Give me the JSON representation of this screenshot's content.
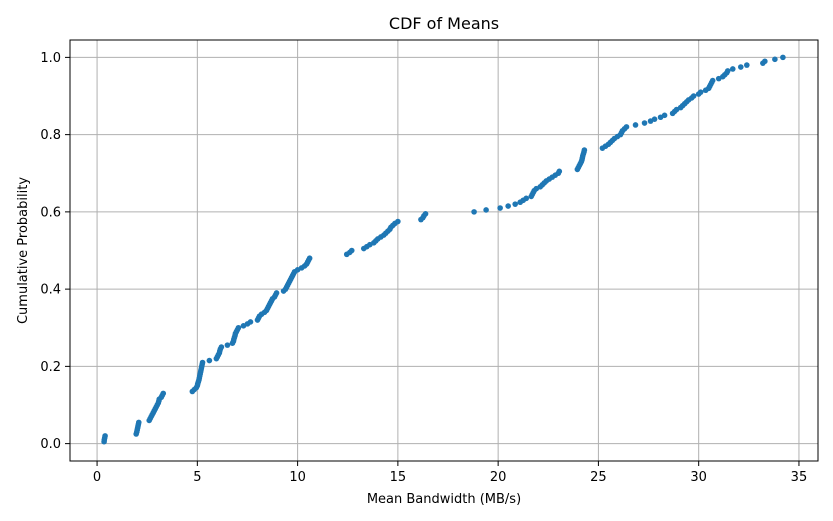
{
  "chart_data": {
    "type": "scatter",
    "title": "CDF of Means",
    "xlabel": "Mean Bandwidth (MB/s)",
    "ylabel": "Cumulative Probability",
    "xlim": [
      -1.35,
      35.95
    ],
    "ylim": [
      -0.045,
      1.045
    ],
    "xticks": [
      0,
      5,
      10,
      15,
      20,
      25,
      30,
      35
    ],
    "xtick_labels": [
      "0",
      "5",
      "10",
      "15",
      "20",
      "25",
      "30",
      "35"
    ],
    "yticks": [
      0.0,
      0.2,
      0.4,
      0.6,
      0.8,
      1.0
    ],
    "ytick_labels": [
      "0.0",
      "0.2",
      "0.4",
      "0.6",
      "0.8",
      "1.0"
    ],
    "grid": true,
    "marker_color": "#1f77b4",
    "grid_color": "#b0b0b0",
    "points": [
      [
        0.35,
        0.005
      ],
      [
        0.36,
        0.01
      ],
      [
        0.38,
        0.015
      ],
      [
        0.4,
        0.02
      ],
      [
        1.95,
        0.025
      ],
      [
        1.98,
        0.03
      ],
      [
        2.0,
        0.035
      ],
      [
        2.02,
        0.04
      ],
      [
        2.04,
        0.045
      ],
      [
        2.06,
        0.05
      ],
      [
        2.08,
        0.055
      ],
      [
        2.6,
        0.06
      ],
      [
        2.65,
        0.065
      ],
      [
        2.7,
        0.07
      ],
      [
        2.75,
        0.075
      ],
      [
        2.8,
        0.08
      ],
      [
        2.85,
        0.085
      ],
      [
        2.9,
        0.09
      ],
      [
        2.95,
        0.095
      ],
      [
        3.0,
        0.1
      ],
      [
        3.05,
        0.105
      ],
      [
        3.08,
        0.11
      ],
      [
        3.1,
        0.115
      ],
      [
        3.2,
        0.12
      ],
      [
        3.25,
        0.125
      ],
      [
        3.3,
        0.13
      ],
      [
        4.75,
        0.135
      ],
      [
        4.85,
        0.14
      ],
      [
        4.95,
        0.145
      ],
      [
        5.0,
        0.15
      ],
      [
        5.02,
        0.155
      ],
      [
        5.05,
        0.16
      ],
      [
        5.08,
        0.165
      ],
      [
        5.1,
        0.17
      ],
      [
        5.12,
        0.175
      ],
      [
        5.14,
        0.18
      ],
      [
        5.16,
        0.185
      ],
      [
        5.18,
        0.19
      ],
      [
        5.2,
        0.195
      ],
      [
        5.22,
        0.2
      ],
      [
        5.24,
        0.205
      ],
      [
        5.26,
        0.21
      ],
      [
        5.6,
        0.215
      ],
      [
        5.95,
        0.22
      ],
      [
        6.0,
        0.225
      ],
      [
        6.05,
        0.23
      ],
      [
        6.1,
        0.235
      ],
      [
        6.12,
        0.24
      ],
      [
        6.15,
        0.245
      ],
      [
        6.2,
        0.25
      ],
      [
        6.5,
        0.255
      ],
      [
        6.75,
        0.26
      ],
      [
        6.8,
        0.265
      ],
      [
        6.82,
        0.27
      ],
      [
        6.85,
        0.275
      ],
      [
        6.88,
        0.28
      ],
      [
        6.9,
        0.285
      ],
      [
        6.95,
        0.29
      ],
      [
        7.0,
        0.295
      ],
      [
        7.05,
        0.3
      ],
      [
        7.3,
        0.305
      ],
      [
        7.5,
        0.31
      ],
      [
        7.65,
        0.315
      ],
      [
        8.0,
        0.32
      ],
      [
        8.05,
        0.325
      ],
      [
        8.1,
        0.33
      ],
      [
        8.2,
        0.335
      ],
      [
        8.35,
        0.34
      ],
      [
        8.45,
        0.345
      ],
      [
        8.5,
        0.35
      ],
      [
        8.55,
        0.355
      ],
      [
        8.6,
        0.36
      ],
      [
        8.65,
        0.365
      ],
      [
        8.7,
        0.37
      ],
      [
        8.75,
        0.375
      ],
      [
        8.85,
        0.38
      ],
      [
        8.9,
        0.385
      ],
      [
        8.95,
        0.39
      ],
      [
        9.3,
        0.395
      ],
      [
        9.4,
        0.4
      ],
      [
        9.45,
        0.405
      ],
      [
        9.5,
        0.41
      ],
      [
        9.55,
        0.415
      ],
      [
        9.6,
        0.42
      ],
      [
        9.65,
        0.425
      ],
      [
        9.7,
        0.43
      ],
      [
        9.75,
        0.435
      ],
      [
        9.8,
        0.44
      ],
      [
        9.85,
        0.445
      ],
      [
        10.0,
        0.45
      ],
      [
        10.2,
        0.455
      ],
      [
        10.35,
        0.46
      ],
      [
        10.45,
        0.465
      ],
      [
        10.5,
        0.47
      ],
      [
        10.55,
        0.475
      ],
      [
        10.6,
        0.48
      ],
      [
        12.45,
        0.49
      ],
      [
        12.6,
        0.495
      ],
      [
        12.7,
        0.5
      ],
      [
        13.3,
        0.505
      ],
      [
        13.45,
        0.51
      ],
      [
        13.6,
        0.515
      ],
      [
        13.8,
        0.52
      ],
      [
        13.9,
        0.525
      ],
      [
        14.0,
        0.53
      ],
      [
        14.15,
        0.535
      ],
      [
        14.3,
        0.54
      ],
      [
        14.4,
        0.545
      ],
      [
        14.5,
        0.55
      ],
      [
        14.6,
        0.555
      ],
      [
        14.65,
        0.56
      ],
      [
        14.75,
        0.565
      ],
      [
        14.85,
        0.57
      ],
      [
        15.0,
        0.575
      ],
      [
        16.15,
        0.58
      ],
      [
        16.25,
        0.585
      ],
      [
        16.3,
        0.59
      ],
      [
        16.38,
        0.595
      ],
      [
        18.8,
        0.6
      ],
      [
        19.4,
        0.605
      ],
      [
        20.1,
        0.61
      ],
      [
        20.5,
        0.615
      ],
      [
        20.85,
        0.62
      ],
      [
        21.1,
        0.625
      ],
      [
        21.25,
        0.63
      ],
      [
        21.4,
        0.635
      ],
      [
        21.65,
        0.64
      ],
      [
        21.7,
        0.645
      ],
      [
        21.75,
        0.65
      ],
      [
        21.8,
        0.655
      ],
      [
        21.9,
        0.66
      ],
      [
        22.1,
        0.665
      ],
      [
        22.2,
        0.67
      ],
      [
        22.3,
        0.675
      ],
      [
        22.4,
        0.68
      ],
      [
        22.55,
        0.685
      ],
      [
        22.7,
        0.69
      ],
      [
        22.85,
        0.695
      ],
      [
        23.0,
        0.7
      ],
      [
        23.05,
        0.705
      ],
      [
        23.95,
        0.71
      ],
      [
        24.0,
        0.715
      ],
      [
        24.05,
        0.72
      ],
      [
        24.1,
        0.725
      ],
      [
        24.15,
        0.73
      ],
      [
        24.18,
        0.735
      ],
      [
        24.2,
        0.74
      ],
      [
        24.22,
        0.745
      ],
      [
        24.25,
        0.75
      ],
      [
        24.28,
        0.755
      ],
      [
        24.3,
        0.76
      ],
      [
        25.2,
        0.765
      ],
      [
        25.35,
        0.77
      ],
      [
        25.5,
        0.775
      ],
      [
        25.6,
        0.78
      ],
      [
        25.7,
        0.785
      ],
      [
        25.8,
        0.79
      ],
      [
        25.95,
        0.795
      ],
      [
        26.1,
        0.8
      ],
      [
        26.15,
        0.805
      ],
      [
        26.2,
        0.81
      ],
      [
        26.3,
        0.815
      ],
      [
        26.4,
        0.82
      ],
      [
        26.85,
        0.825
      ],
      [
        27.3,
        0.83
      ],
      [
        27.6,
        0.835
      ],
      [
        27.8,
        0.84
      ],
      [
        28.1,
        0.845
      ],
      [
        28.3,
        0.85
      ],
      [
        28.7,
        0.855
      ],
      [
        28.8,
        0.86
      ],
      [
        28.9,
        0.865
      ],
      [
        29.1,
        0.87
      ],
      [
        29.2,
        0.875
      ],
      [
        29.3,
        0.88
      ],
      [
        29.4,
        0.885
      ],
      [
        29.5,
        0.89
      ],
      [
        29.65,
        0.895
      ],
      [
        29.75,
        0.9
      ],
      [
        30.0,
        0.905
      ],
      [
        30.1,
        0.91
      ],
      [
        30.35,
        0.915
      ],
      [
        30.5,
        0.92
      ],
      [
        30.55,
        0.925
      ],
      [
        30.6,
        0.93
      ],
      [
        30.65,
        0.935
      ],
      [
        30.7,
        0.94
      ],
      [
        31.0,
        0.945
      ],
      [
        31.2,
        0.95
      ],
      [
        31.3,
        0.955
      ],
      [
        31.4,
        0.96
      ],
      [
        31.45,
        0.965
      ],
      [
        31.7,
        0.97
      ],
      [
        32.1,
        0.975
      ],
      [
        32.4,
        0.98
      ],
      [
        33.2,
        0.985
      ],
      [
        33.3,
        0.99
      ],
      [
        33.8,
        0.995
      ],
      [
        34.2,
        1.0
      ]
    ]
  }
}
